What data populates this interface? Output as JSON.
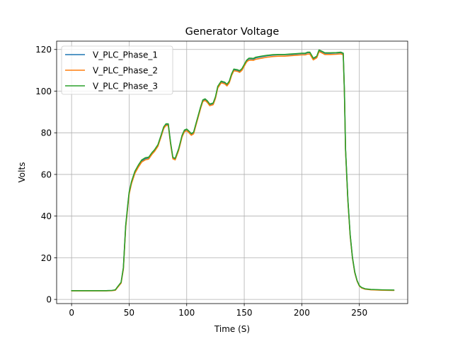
{
  "chart_data": {
    "type": "line",
    "title": "Generator Voltage",
    "xlabel": "Time (S)",
    "ylabel": "Volts",
    "xlim": [
      -13,
      292
    ],
    "ylim": [
      -2,
      124
    ],
    "xticks": [
      0,
      50,
      100,
      150,
      200,
      250
    ],
    "yticks": [
      0,
      20,
      40,
      60,
      80,
      100,
      120
    ],
    "grid": true,
    "legend_position": "top-left",
    "series": [
      {
        "name": "V_PLC_Phase_1",
        "color": "#1f77b4",
        "x": [
          0,
          10,
          20,
          30,
          35,
          38,
          40,
          43,
          45,
          47,
          49,
          50,
          52,
          55,
          58,
          61,
          64,
          67,
          70,
          72,
          75,
          78,
          80,
          82,
          84,
          86,
          88,
          90,
          93,
          96,
          98,
          100,
          102,
          104,
          106,
          108,
          110,
          112,
          114,
          116,
          118,
          120,
          123,
          125,
          127,
          130,
          133,
          135,
          137,
          139,
          141,
          144,
          146,
          148,
          150,
          152,
          154,
          156,
          158,
          160,
          165,
          170,
          175,
          180,
          185,
          190,
          195,
          200,
          203,
          205,
          207,
          210,
          213,
          215,
          218,
          220,
          225,
          230,
          234,
          236,
          237,
          238,
          240,
          242,
          244,
          246,
          248,
          250,
          252,
          255,
          260,
          270,
          280
        ],
        "y": [
          4.2,
          4.2,
          4.2,
          4.2,
          4.3,
          4.5,
          6,
          8,
          15,
          35,
          46,
          51,
          56,
          61,
          64,
          66.5,
          67.6,
          68,
          70.3,
          71.5,
          74,
          79,
          82.5,
          84,
          84,
          75,
          68,
          67.5,
          72,
          78.5,
          81,
          81.5,
          80.5,
          79.3,
          80,
          84,
          88,
          92,
          95.5,
          96,
          95,
          93.5,
          94,
          97,
          102,
          104.5,
          104,
          103,
          104.5,
          108,
          110.3,
          110,
          109.5,
          110.5,
          112.5,
          114.5,
          115.5,
          115.5,
          115.4,
          116,
          116.5,
          117,
          117.3,
          117.5,
          117.5,
          117.6,
          117.8,
          118,
          118,
          118.5,
          118.5,
          115.5,
          116.5,
          119.5,
          118.8,
          118.2,
          118.2,
          118.3,
          118.5,
          118,
          100,
          72,
          48,
          31,
          20,
          13,
          9,
          6.5,
          5.6,
          5,
          4.7,
          4.5,
          4.4
        ]
      },
      {
        "name": "V_PLC_Phase_2",
        "color": "#ff7f0e",
        "x": [
          0,
          10,
          20,
          30,
          35,
          38,
          40,
          43,
          45,
          47,
          49,
          50,
          52,
          55,
          58,
          61,
          64,
          67,
          70,
          72,
          75,
          78,
          80,
          82,
          84,
          86,
          88,
          90,
          93,
          96,
          98,
          100,
          102,
          104,
          106,
          108,
          110,
          112,
          114,
          116,
          118,
          120,
          123,
          125,
          127,
          130,
          133,
          135,
          137,
          139,
          141,
          144,
          146,
          148,
          150,
          152,
          154,
          156,
          158,
          160,
          165,
          170,
          175,
          180,
          185,
          190,
          195,
          200,
          203,
          205,
          207,
          210,
          213,
          215,
          218,
          220,
          225,
          230,
          234,
          236,
          237,
          238,
          240,
          242,
          244,
          246,
          248,
          250,
          252,
          255,
          260,
          270,
          280
        ],
        "y": [
          4.1,
          4.1,
          4.1,
          4.1,
          4.2,
          4.4,
          5.8,
          7.8,
          14.5,
          34.5,
          45.5,
          50.5,
          55.5,
          60.5,
          63.5,
          66,
          67,
          67.4,
          69.8,
          71,
          73.5,
          78.5,
          82,
          83.5,
          83.5,
          74.5,
          67.5,
          67,
          71.5,
          78,
          80.5,
          81,
          80,
          78.8,
          79.5,
          83.5,
          87.5,
          91.5,
          95,
          95.5,
          94.5,
          93,
          93.5,
          96.5,
          101.5,
          104,
          103.5,
          102.5,
          104,
          107.5,
          109.8,
          109.5,
          109,
          110,
          112,
          114,
          114.8,
          114.9,
          114.8,
          115.3,
          115.8,
          116.3,
          116.6,
          116.8,
          116.8,
          117,
          117.2,
          117.4,
          117.4,
          117.8,
          117.8,
          115,
          116,
          119,
          118.2,
          117.6,
          117.6,
          117.7,
          117.9,
          117.4,
          99.5,
          71.5,
          47.5,
          30.5,
          19.8,
          12.8,
          8.8,
          6.4,
          5.5,
          4.9,
          4.6,
          4.4,
          4.3
        ]
      },
      {
        "name": "V_PLC_Phase_3",
        "color": "#2ca02c",
        "x": [
          0,
          10,
          20,
          30,
          35,
          38,
          40,
          43,
          45,
          47,
          49,
          50,
          52,
          55,
          58,
          61,
          64,
          67,
          70,
          72,
          75,
          78,
          80,
          82,
          84,
          86,
          88,
          90,
          93,
          96,
          98,
          100,
          102,
          104,
          106,
          108,
          110,
          112,
          114,
          116,
          118,
          120,
          123,
          125,
          127,
          130,
          133,
          135,
          137,
          139,
          141,
          144,
          146,
          148,
          150,
          152,
          154,
          156,
          158,
          160,
          165,
          170,
          175,
          180,
          185,
          190,
          195,
          200,
          203,
          205,
          207,
          210,
          213,
          215,
          218,
          220,
          225,
          230,
          234,
          236,
          237,
          238,
          240,
          242,
          244,
          246,
          248,
          250,
          252,
          255,
          260,
          270,
          280
        ],
        "y": [
          4.2,
          4.2,
          4.2,
          4.2,
          4.3,
          4.6,
          6.1,
          8.2,
          15.3,
          35.5,
          46.5,
          51.5,
          56.5,
          61.5,
          64.5,
          67,
          68,
          68.3,
          70.6,
          71.8,
          74.3,
          79.3,
          82.8,
          84.3,
          84.3,
          75.3,
          68.2,
          67.7,
          72.3,
          78.8,
          81.3,
          81.8,
          80.8,
          79.6,
          80.3,
          84.3,
          88.3,
          92.3,
          95.8,
          96.3,
          95.3,
          93.8,
          94.3,
          97.3,
          102.3,
          104.8,
          104.3,
          103.3,
          104.8,
          108.3,
          110.6,
          110.3,
          109.8,
          110.8,
          112.8,
          114.8,
          115.8,
          115.8,
          115.7,
          116.3,
          116.8,
          117.2,
          117.5,
          117.6,
          117.6,
          117.8,
          118,
          118.2,
          118.2,
          118.7,
          118.7,
          115.8,
          116.8,
          119.8,
          119,
          118.4,
          118.4,
          118.5,
          118.7,
          118.2,
          100.3,
          72.3,
          48.3,
          31.2,
          20.2,
          13.2,
          9.1,
          6.6,
          5.7,
          5.1,
          4.8,
          4.6,
          4.5
        ]
      }
    ]
  }
}
